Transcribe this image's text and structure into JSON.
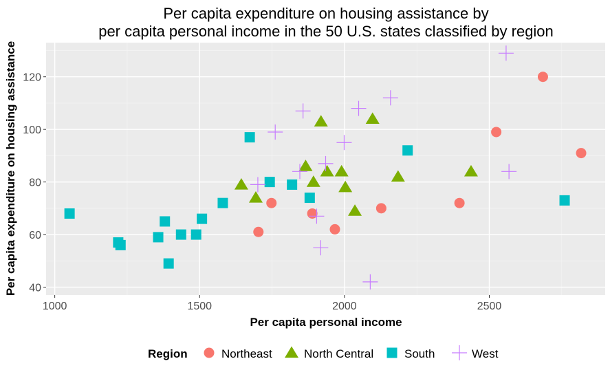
{
  "chart_data": {
    "type": "scatter",
    "title_lines": [
      "Per capita expenditure on housing assistance by",
      "per capita personal income in the 50 U.S. states classified by region"
    ],
    "xlabel": "Per capita personal income",
    "ylabel": "Per capita expenditure on housing assistance",
    "xlim": [
      970,
      2900
    ],
    "ylim": [
      37,
      133
    ],
    "x_ticks": [
      1000,
      1500,
      2000,
      2500
    ],
    "y_ticks": [
      40,
      60,
      80,
      100,
      120
    ],
    "grid": true,
    "legend_position": "bottom",
    "legend_title": "Region",
    "series": [
      {
        "name": "Northeast",
        "color": "#F8766D",
        "shape": "circle",
        "points": [
          {
            "x": 2685,
            "y": 120
          },
          {
            "x": 2524,
            "y": 99
          },
          {
            "x": 2817,
            "y": 91
          },
          {
            "x": 2397,
            "y": 72
          },
          {
            "x": 2127,
            "y": 70
          },
          {
            "x": 1748,
            "y": 72
          },
          {
            "x": 1703,
            "y": 61
          },
          {
            "x": 1889,
            "y": 68
          },
          {
            "x": 1967,
            "y": 62
          }
        ]
      },
      {
        "name": "North Central",
        "color": "#7CAE00",
        "shape": "triangle",
        "points": [
          {
            "x": 2097,
            "y": 104
          },
          {
            "x": 1919,
            "y": 103
          },
          {
            "x": 1866,
            "y": 86
          },
          {
            "x": 1940,
            "y": 84
          },
          {
            "x": 1990,
            "y": 84
          },
          {
            "x": 2185,
            "y": 82
          },
          {
            "x": 2437,
            "y": 84
          },
          {
            "x": 1893,
            "y": 80
          },
          {
            "x": 2003,
            "y": 78
          },
          {
            "x": 1644,
            "y": 79
          },
          {
            "x": 1694,
            "y": 74
          },
          {
            "x": 2036,
            "y": 69
          }
        ]
      },
      {
        "name": "South",
        "color": "#00BFC4",
        "shape": "square",
        "points": [
          {
            "x": 1673,
            "y": 97
          },
          {
            "x": 2218,
            "y": 92
          },
          {
            "x": 1742,
            "y": 80
          },
          {
            "x": 1819,
            "y": 79
          },
          {
            "x": 1580,
            "y": 72
          },
          {
            "x": 1880,
            "y": 74
          },
          {
            "x": 2760,
            "y": 73
          },
          {
            "x": 1051,
            "y": 68
          },
          {
            "x": 1380,
            "y": 65
          },
          {
            "x": 1508,
            "y": 66
          },
          {
            "x": 1436,
            "y": 60
          },
          {
            "x": 1488,
            "y": 60
          },
          {
            "x": 1357,
            "y": 59
          },
          {
            "x": 1219,
            "y": 57
          },
          {
            "x": 1227,
            "y": 56
          },
          {
            "x": 1393,
            "y": 49
          }
        ]
      },
      {
        "name": "West",
        "color": "#C77CFF",
        "shape": "plus",
        "points": [
          {
            "x": 2558,
            "y": 129
          },
          {
            "x": 2159,
            "y": 112
          },
          {
            "x": 1857,
            "y": 107
          },
          {
            "x": 2049,
            "y": 108
          },
          {
            "x": 1761,
            "y": 99
          },
          {
            "x": 1999,
            "y": 95
          },
          {
            "x": 2568,
            "y": 84
          },
          {
            "x": 1935,
            "y": 87
          },
          {
            "x": 1846,
            "y": 84
          },
          {
            "x": 1701,
            "y": 79
          },
          {
            "x": 1904,
            "y": 67
          },
          {
            "x": 1918,
            "y": 55
          },
          {
            "x": 2089,
            "y": 42
          }
        ]
      }
    ]
  }
}
